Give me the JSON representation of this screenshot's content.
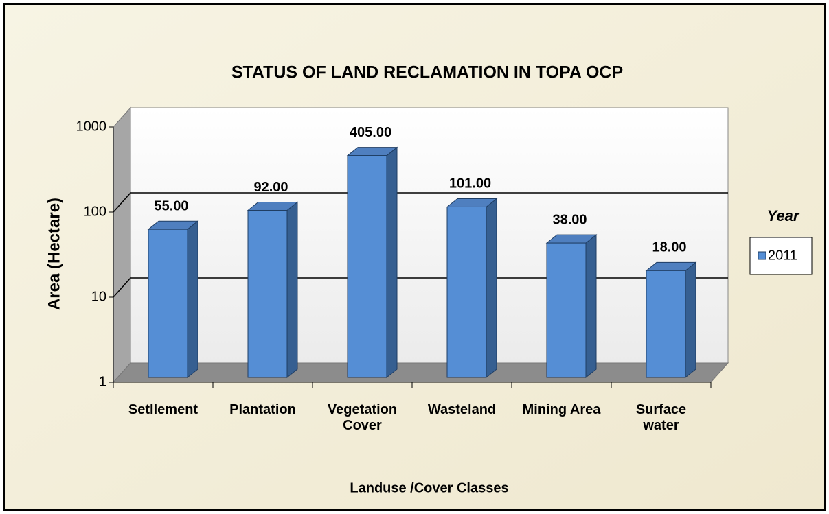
{
  "chart_data": {
    "type": "bar",
    "title": "STATUS OF LAND RECLAMATION  IN TOPA OCP",
    "categories": [
      "Setllement",
      "Plantation",
      "Vegetation Cover",
      "Wasteland",
      "Mining Area",
      "Surface water"
    ],
    "series": [
      {
        "name": "2011",
        "color": "#558ed5",
        "values": [
          55,
          92,
          405,
          101,
          38,
          18
        ],
        "value_labels": [
          "55.00",
          "92.00",
          "405.00",
          "101.00",
          "38.00",
          "18.00"
        ]
      }
    ],
    "xlabel": "Landuse /Cover Classes",
    "ylabel": "Area (Hectare)",
    "legend_title": "Year",
    "legend_position": "right",
    "log_scale": true,
    "ylim": [
      1,
      1000
    ],
    "yticks": [
      1,
      10,
      100,
      1000
    ],
    "grid": true
  }
}
